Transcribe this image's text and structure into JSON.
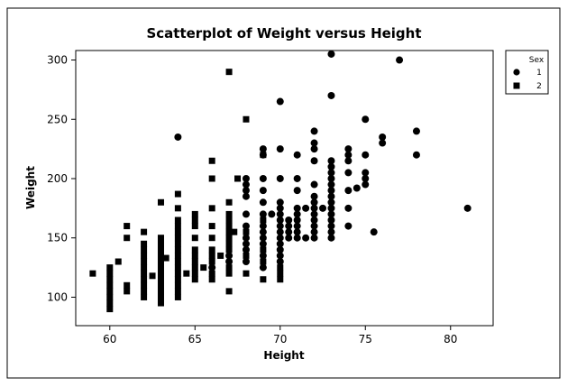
{
  "chart_data": {
    "type": "scatter",
    "title": "Scatterplot of Weight versus Height",
    "xlabel": "Height",
    "ylabel": "Weight",
    "xlim": [
      58,
      82.5
    ],
    "ylim": [
      76,
      308
    ],
    "xticks": [
      60,
      65,
      70,
      75,
      80
    ],
    "yticks": [
      100,
      150,
      200,
      250,
      300
    ],
    "grid": false,
    "legend": {
      "title": "Sex",
      "placement": "top-right, outside plot",
      "entries": [
        {
          "label": "1",
          "marker": "circle"
        },
        {
          "label": "2",
          "marker": "square"
        }
      ]
    },
    "series": [
      {
        "name": "1",
        "marker": "circle",
        "points": [
          [
            64,
            235
          ],
          [
            66,
            125
          ],
          [
            67,
            130
          ],
          [
            67,
            135
          ],
          [
            68,
            130
          ],
          [
            68,
            140
          ],
          [
            68,
            145
          ],
          [
            68,
            150
          ],
          [
            68,
            160
          ],
          [
            68,
            170
          ],
          [
            68,
            185
          ],
          [
            68,
            190
          ],
          [
            68,
            195
          ],
          [
            68,
            200
          ],
          [
            69,
            125
          ],
          [
            69,
            135
          ],
          [
            69,
            145
          ],
          [
            69,
            150
          ],
          [
            69,
            155
          ],
          [
            69,
            160
          ],
          [
            69,
            170
          ],
          [
            69,
            180
          ],
          [
            69,
            190
          ],
          [
            69,
            200
          ],
          [
            69,
            220
          ],
          [
            69,
            225
          ],
          [
            69.5,
            170
          ],
          [
            70,
            130
          ],
          [
            70,
            135
          ],
          [
            70,
            140
          ],
          [
            70,
            145
          ],
          [
            70,
            150
          ],
          [
            70,
            155
          ],
          [
            70,
            160
          ],
          [
            70,
            165
          ],
          [
            70,
            170
          ],
          [
            70,
            175
          ],
          [
            70,
            180
          ],
          [
            70,
            200
          ],
          [
            70,
            225
          ],
          [
            70,
            265
          ],
          [
            70.5,
            150
          ],
          [
            70.5,
            155
          ],
          [
            70.5,
            160
          ],
          [
            70.5,
            165
          ],
          [
            71,
            150
          ],
          [
            71,
            155
          ],
          [
            71,
            160
          ],
          [
            71,
            165
          ],
          [
            71,
            170
          ],
          [
            71,
            175
          ],
          [
            71,
            190
          ],
          [
            71,
            200
          ],
          [
            71,
            220
          ],
          [
            71.5,
            150
          ],
          [
            71.5,
            175
          ],
          [
            72,
            150
          ],
          [
            72,
            155
          ],
          [
            72,
            160
          ],
          [
            72,
            165
          ],
          [
            72,
            170
          ],
          [
            72,
            175
          ],
          [
            72,
            180
          ],
          [
            72,
            185
          ],
          [
            72,
            195
          ],
          [
            72,
            215
          ],
          [
            72,
            225
          ],
          [
            72,
            230
          ],
          [
            72,
            240
          ],
          [
            72.5,
            175
          ],
          [
            73,
            150
          ],
          [
            73,
            155
          ],
          [
            73,
            160
          ],
          [
            73,
            165
          ],
          [
            73,
            170
          ],
          [
            73,
            175
          ],
          [
            73,
            180
          ],
          [
            73,
            185
          ],
          [
            73,
            190
          ],
          [
            73,
            195
          ],
          [
            73,
            200
          ],
          [
            73,
            205
          ],
          [
            73,
            210
          ],
          [
            73,
            215
          ],
          [
            73,
            270
          ],
          [
            73,
            305
          ],
          [
            74,
            160
          ],
          [
            74,
            175
          ],
          [
            74,
            190
          ],
          [
            74,
            205
          ],
          [
            74,
            215
          ],
          [
            74,
            220
          ],
          [
            74,
            225
          ],
          [
            74.5,
            192
          ],
          [
            75,
            195
          ],
          [
            75,
            200
          ],
          [
            75,
            205
          ],
          [
            75,
            220
          ],
          [
            75,
            250
          ],
          [
            75.5,
            155
          ],
          [
            76,
            230
          ],
          [
            76,
            235
          ],
          [
            77,
            300
          ],
          [
            78,
            220
          ],
          [
            78,
            240
          ],
          [
            81,
            175
          ]
        ]
      },
      {
        "name": "2",
        "marker": "square",
        "points": [
          [
            59,
            120
          ],
          [
            60,
            90
          ],
          [
            60,
            95
          ],
          [
            60,
            100
          ],
          [
            60,
            105
          ],
          [
            60,
            110
          ],
          [
            60,
            115
          ],
          [
            60,
            120
          ],
          [
            60,
            125
          ],
          [
            60.5,
            130
          ],
          [
            61,
            105
          ],
          [
            61,
            110
          ],
          [
            61,
            150
          ],
          [
            61,
            160
          ],
          [
            62,
            100
          ],
          [
            62,
            105
          ],
          [
            62,
            110
          ],
          [
            62,
            115
          ],
          [
            62,
            120
          ],
          [
            62,
            125
          ],
          [
            62,
            130
          ],
          [
            62,
            135
          ],
          [
            62,
            140
          ],
          [
            62,
            145
          ],
          [
            62,
            155
          ],
          [
            62.5,
            118
          ],
          [
            63,
            95
          ],
          [
            63,
            100
          ],
          [
            63,
            105
          ],
          [
            63,
            110
          ],
          [
            63,
            115
          ],
          [
            63,
            120
          ],
          [
            63,
            125
          ],
          [
            63,
            130
          ],
          [
            63,
            135
          ],
          [
            63,
            140
          ],
          [
            63,
            145
          ],
          [
            63,
            150
          ],
          [
            63,
            180
          ],
          [
            63.3,
            133
          ],
          [
            64,
            100
          ],
          [
            64,
            105
          ],
          [
            64,
            110
          ],
          [
            64,
            115
          ],
          [
            64,
            120
          ],
          [
            64,
            125
          ],
          [
            64,
            130
          ],
          [
            64,
            135
          ],
          [
            64,
            140
          ],
          [
            64,
            145
          ],
          [
            64,
            150
          ],
          [
            64,
            155
          ],
          [
            64,
            160
          ],
          [
            64,
            165
          ],
          [
            64,
            175
          ],
          [
            64,
            187
          ],
          [
            64.5,
            120
          ],
          [
            65,
            115
          ],
          [
            65,
            120
          ],
          [
            65,
            125
          ],
          [
            65,
            130
          ],
          [
            65,
            135
          ],
          [
            65,
            140
          ],
          [
            65,
            150
          ],
          [
            65,
            160
          ],
          [
            65,
            165
          ],
          [
            65,
            170
          ],
          [
            65.5,
            125
          ],
          [
            66,
            115
          ],
          [
            66,
            120
          ],
          [
            66,
            130
          ],
          [
            66,
            135
          ],
          [
            66,
            140
          ],
          [
            66,
            150
          ],
          [
            66,
            160
          ],
          [
            66,
            175
          ],
          [
            66,
            200
          ],
          [
            66,
            215
          ],
          [
            66.5,
            135
          ],
          [
            67,
            105
          ],
          [
            67,
            120
          ],
          [
            67,
            125
          ],
          [
            67,
            140
          ],
          [
            67,
            145
          ],
          [
            67,
            150
          ],
          [
            67,
            155
          ],
          [
            67,
            160
          ],
          [
            67,
            165
          ],
          [
            67,
            170
          ],
          [
            67,
            180
          ],
          [
            67,
            290
          ],
          [
            67.3,
            155
          ],
          [
            67.5,
            200
          ],
          [
            68,
            120
          ],
          [
            68,
            135
          ],
          [
            68,
            155
          ],
          [
            68,
            250
          ],
          [
            69,
            115
          ],
          [
            69,
            130
          ],
          [
            69,
            140
          ],
          [
            69,
            165
          ],
          [
            69,
            220
          ],
          [
            70,
            115
          ],
          [
            70,
            120
          ],
          [
            70,
            125
          ]
        ]
      }
    ]
  }
}
